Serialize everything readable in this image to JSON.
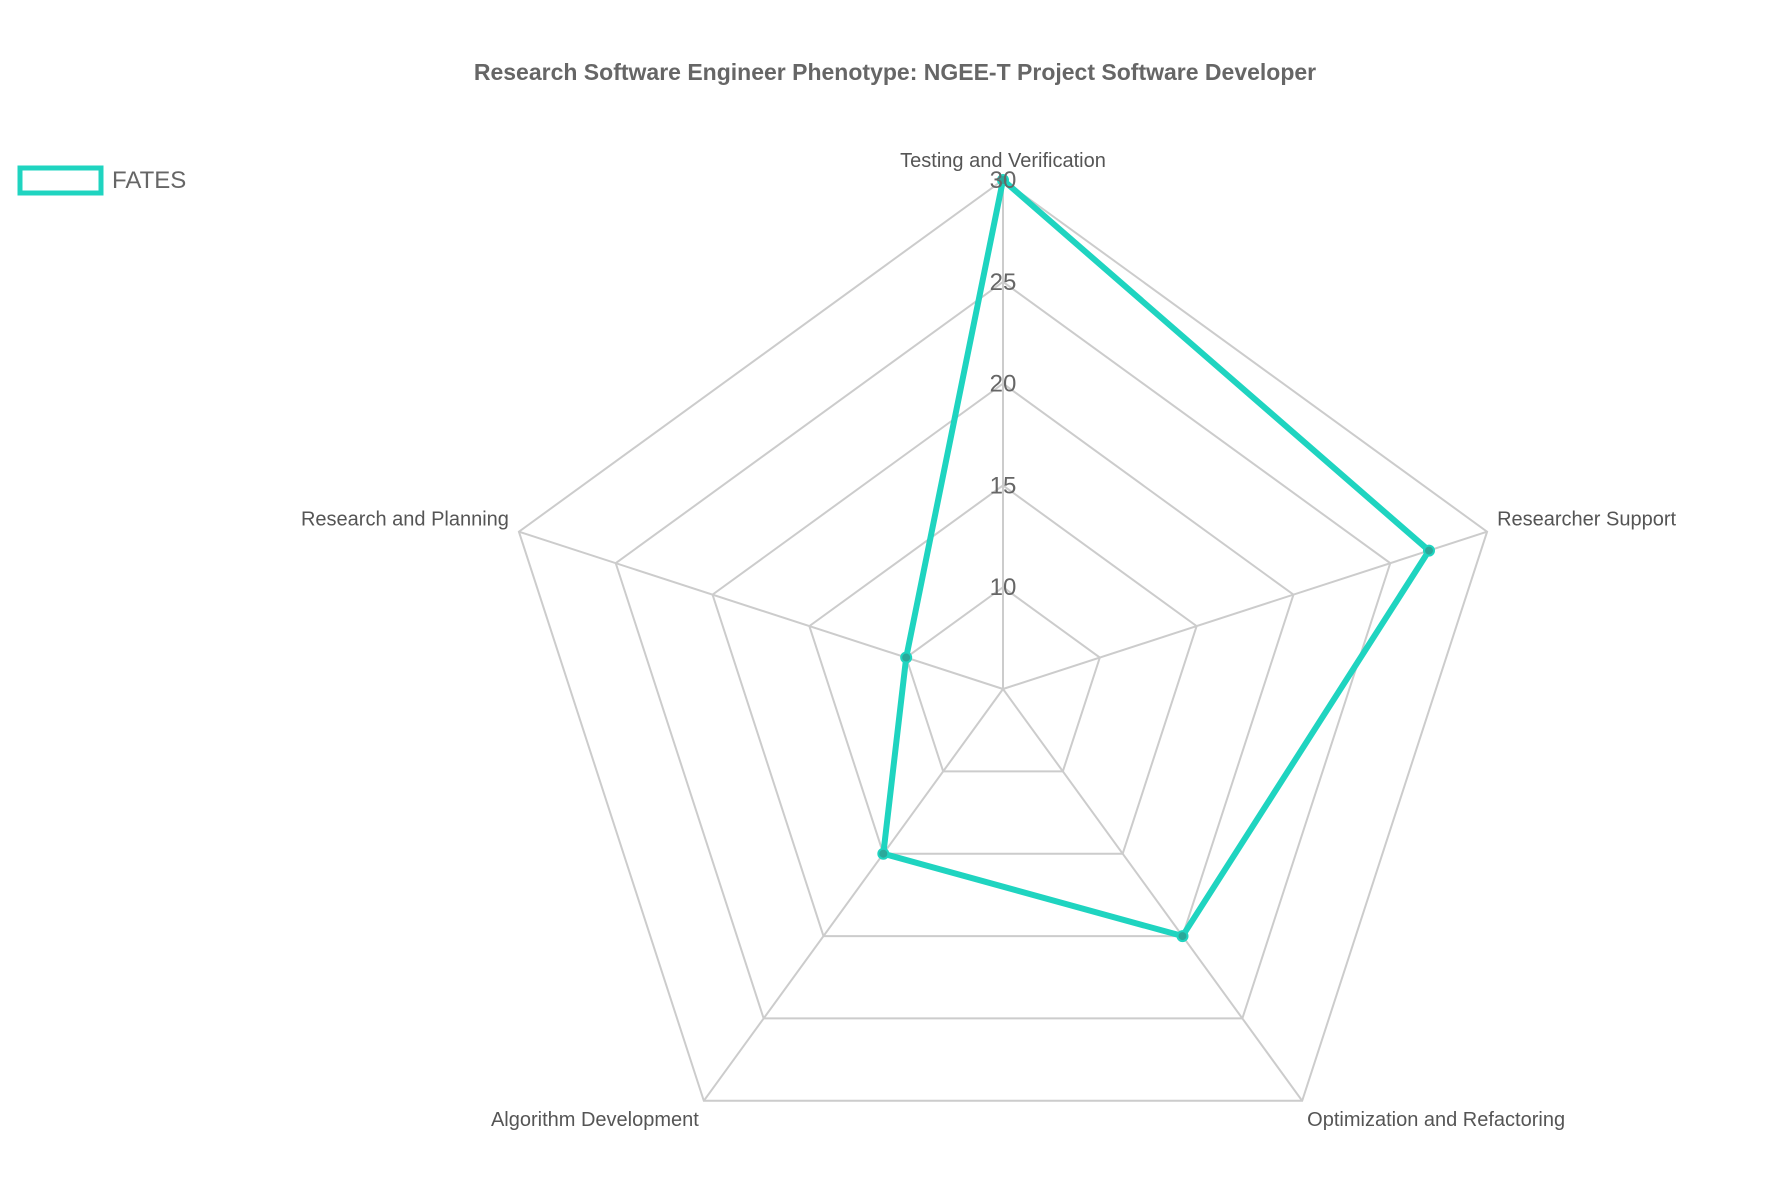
{
  "chart_data": {
    "type": "radar",
    "title": "Research Software Engineer Phenotype: NGEE-T Project Software Developer",
    "categories": [
      "Testing and Verification",
      "Researcher Support",
      "Optimization and Refactoring",
      "Algorithm Development",
      "Research and Planning"
    ],
    "series": [
      {
        "name": "FATES",
        "values": [
          30,
          27,
          20,
          15,
          10
        ],
        "color": "#1fd4c0"
      }
    ],
    "rlim": [
      5,
      30
    ],
    "ticks": [
      10,
      15,
      20,
      25,
      30
    ],
    "grid_color": "#cccccc",
    "grid": true,
    "legend_position": "top-left"
  }
}
